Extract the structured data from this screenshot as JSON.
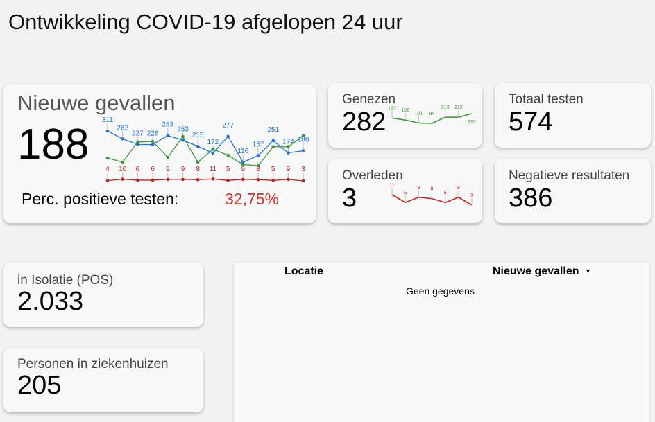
{
  "title": "Ontwikkeling COVID-19 afgelopen 24 uur",
  "main": {
    "label": "Nieuwe gevallen",
    "value": "188",
    "perc_label": "Perc. positieve testen:",
    "perc_value": "32,75%"
  },
  "genezen": {
    "label": "Genezen",
    "value": "282"
  },
  "totaal": {
    "label": "Totaal testen",
    "value": "574"
  },
  "overleden": {
    "label": "Overleden",
    "value": "3"
  },
  "negatief": {
    "label": "Negatieve resultaten",
    "value": "386"
  },
  "isolatie": {
    "label": "in Isolatie (POS)",
    "value": "2.033"
  },
  "ziekenhuis": {
    "label": "Personen in ziekenhuizen",
    "value": "205"
  },
  "table": {
    "col1": "Locatie",
    "col2": "Nieuwe gevallen",
    "sort_icon": "caret-down",
    "empty": "Geen gegevens"
  },
  "colors": {
    "blue": "#1a73e8",
    "green": "#3c9a3c",
    "red": "#c5221f"
  },
  "chart_data": [
    {
      "type": "line",
      "title": "Nieuwe gevallen",
      "series": [
        {
          "name": "Nieuwe gevallen",
          "color": "#1a73e8",
          "labeled": true,
          "values": [
            311,
            262,
            227,
            226,
            283,
            253,
            215,
            172,
            277,
            116,
            157,
            251,
            174,
            188
          ]
        },
        {
          "name": "Genezen",
          "color": "#3c9a3c",
          "labeled": false,
          "values": [
            142,
            116,
            242,
            246,
            146,
            276,
            116,
            197,
            159,
            101,
            94,
            213,
            212,
            282
          ]
        },
        {
          "name": "Overleden",
          "color": "#c5221f",
          "labeled": true,
          "values": [
            4,
            10,
            6,
            6,
            9,
            9,
            8,
            11,
            5,
            9,
            8,
            5,
            9,
            3
          ]
        }
      ]
    },
    {
      "type": "line",
      "title": "Genezen",
      "series": [
        {
          "name": "Genezen",
          "color": "#3c9a3c",
          "values": [
            197,
            159,
            101,
            94,
            213,
            212,
            282
          ]
        }
      ]
    },
    {
      "type": "line",
      "title": "Overleden",
      "series": [
        {
          "name": "Overleden",
          "color": "#c5221f",
          "values": [
            11,
            5,
            9,
            8,
            5,
            9,
            3
          ]
        }
      ]
    }
  ]
}
